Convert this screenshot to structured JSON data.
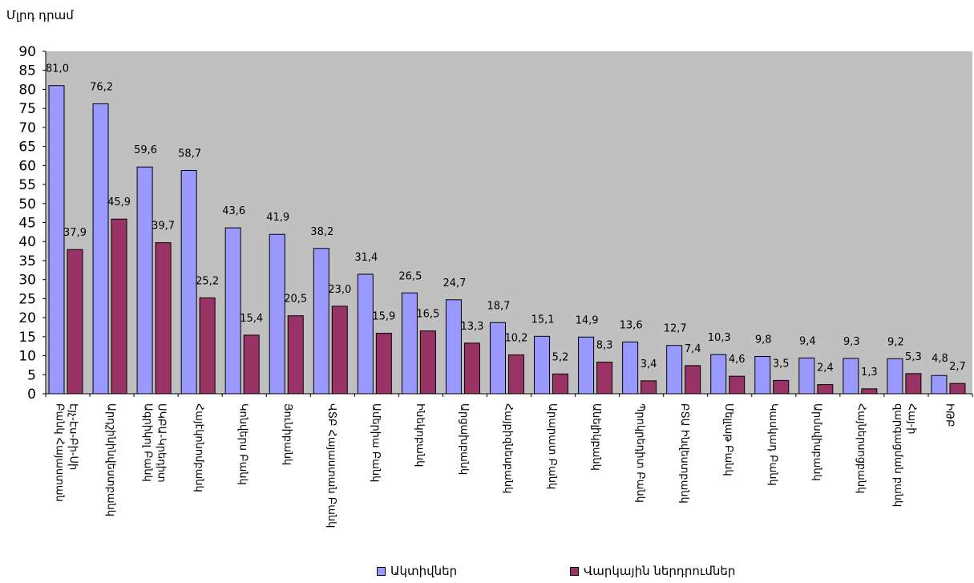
{
  "chart_data": {
    "type": "bar",
    "unit_label": "Մլրդ դրամ",
    "ylim": [
      0,
      90
    ],
    "yticks": [
      "0",
      "5",
      "10",
      "15",
      "20",
      "25",
      "30",
      "35",
      "40",
      "45",
      "50",
      "55",
      "60",
      "65",
      "70",
      "75",
      "80",
      "85",
      "90"
    ],
    "grid": false,
    "legend_position": "bottom",
    "categories": [
      "Էյչ-Էս-Բի-Սի Բանկ Հայաստան",
      "Արդշինինվեստբանկ",
      "ՍԿԲԱ-Կրեդիտ Ագրիկոլ Բանկ",
      "Հայէկոնոմբանկ",
      "Կոնվերս Բանկ",
      "Յունիբանկ",
      "ՎՏԲ Հայաստան Բանկ",
      "Ամերիա Բանկ",
      "Ինեկոբանկ",
      "Արցախբանկ",
      "Հայբիզնեսբանկ",
      "Արարատ Բանկ",
      "Անելիկբանկ",
      "Պրոկրեդիտ Բանկ",
      "ԲՏԱ Ինվեստբանկ",
      "Մելլաթ Բանկ",
      "Կասկադ Բանկ",
      "Արմսվիսբանկ",
      "Հայներսոցբանկ",
      "Հայ-ի զարգացման բանկ",
      "ԻԹԲ"
    ],
    "series": [
      {
        "name": "Ակտիվներ",
        "color": "#9999ff",
        "values": [
          81.0,
          76.2,
          59.6,
          58.7,
          43.6,
          41.9,
          38.2,
          31.4,
          26.5,
          24.7,
          18.7,
          15.1,
          14.9,
          13.6,
          12.7,
          10.3,
          9.8,
          9.4,
          9.3,
          9.2,
          4.8
        ],
        "labels": [
          "81,0",
          "76,2",
          "59,6",
          "58,7",
          "43,6",
          "41,9",
          "38,2",
          "31,4",
          "26,5",
          "24,7",
          "18,7",
          "15,1",
          "14,9",
          "13,6",
          "12,7",
          "10,3",
          "9,8",
          "9,4",
          "9,3",
          "9,2",
          "4,8"
        ]
      },
      {
        "name": "Վարկային ներդրումներ",
        "color": "#993366",
        "values": [
          37.9,
          45.9,
          39.7,
          25.2,
          15.4,
          20.5,
          23.0,
          15.9,
          16.5,
          13.3,
          10.2,
          5.2,
          8.3,
          3.4,
          7.4,
          4.6,
          3.5,
          2.4,
          1.3,
          5.3,
          2.7
        ],
        "labels": [
          "37,9",
          "45,9",
          "39,7",
          "25,2",
          "15,4",
          "20,5",
          "23,0",
          "15,9",
          "16,5",
          "13,3",
          "10,2",
          "5,2",
          "8,3",
          "3,4",
          "7,4",
          "4,6",
          "3,5",
          "2,4",
          "1,3",
          "5,3",
          "2,7"
        ]
      }
    ],
    "colors": {
      "plot_background": "#c0c0c0"
    }
  }
}
